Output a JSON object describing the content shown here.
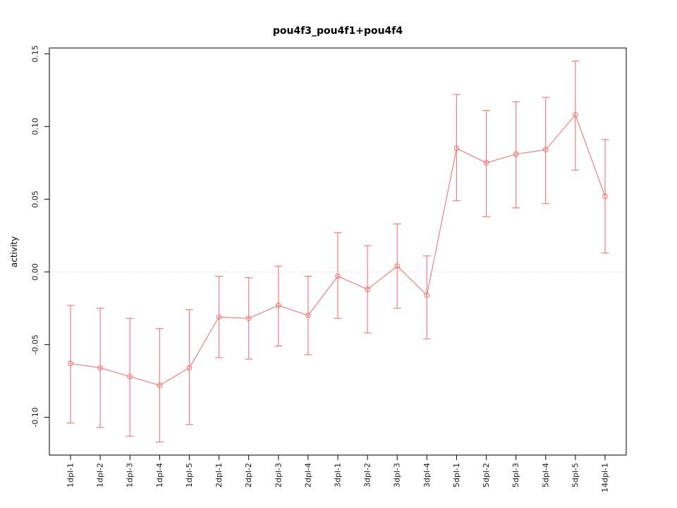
{
  "chart_data": {
    "type": "line",
    "title": "pou4f3_pou4f1+pou4f4",
    "xlabel": "",
    "ylabel": "activity",
    "categories": [
      "1dpl-1",
      "1dpl-2",
      "1dpl-3",
      "1dpl-4",
      "1dpl-5",
      "2dpl-1",
      "2dpl-2",
      "2dpl-3",
      "2dpl-4",
      "3dpl-1",
      "3dpl-2",
      "3dpl-3",
      "3dpl-4",
      "5dpl-1",
      "5dpl-2",
      "5dpl-3",
      "5dpl-4",
      "5dpl-5",
      "14dpl-1"
    ],
    "series": [
      {
        "name": "activity",
        "values": [
          -0.063,
          -0.066,
          -0.072,
          -0.078,
          -0.066,
          -0.031,
          -0.032,
          -0.023,
          -0.03,
          -0.003,
          -0.012,
          0.004,
          -0.016,
          0.085,
          0.075,
          0.081,
          0.084,
          0.108,
          0.052
        ],
        "error_low": [
          -0.104,
          -0.107,
          -0.113,
          -0.117,
          -0.105,
          -0.059,
          -0.06,
          -0.051,
          -0.057,
          -0.032,
          -0.042,
          -0.025,
          -0.046,
          0.049,
          0.038,
          0.044,
          0.047,
          0.07,
          0.013
        ],
        "error_high": [
          -0.023,
          -0.025,
          -0.032,
          -0.039,
          -0.026,
          -0.003,
          -0.004,
          0.004,
          -0.003,
          0.027,
          0.018,
          0.033,
          0.011,
          0.122,
          0.111,
          0.117,
          0.12,
          0.145,
          0.091
        ]
      }
    ],
    "ylim": [
      -0.126,
      0.154
    ],
    "yticks": [
      -0.1,
      -0.05,
      0.0,
      0.05,
      0.1,
      0.15
    ],
    "ytick_labels": [
      "-0.10",
      "-0.05",
      "0.00",
      "0.05",
      "0.10",
      "0.15"
    ],
    "zero_line": 0,
    "legend": "none",
    "grid": "dotted horizontal line at y=0 only",
    "colors": {
      "series": "#f08080",
      "axis": "#000000",
      "zero_line": "#c8c8c8",
      "background": "#ffffff"
    }
  }
}
